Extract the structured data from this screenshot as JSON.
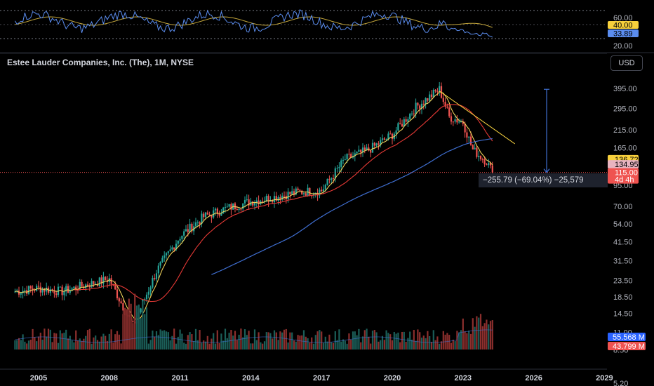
{
  "header": {
    "title": "Estee Lauder Companies, Inc. (The), 1M, NYSE",
    "currency": "USD"
  },
  "colors": {
    "up": "#26a69a",
    "down": "#ef5350",
    "ma_fast": "#f0d25a",
    "ma_mid": "#e53935",
    "ma_slow": "#3f6ed0",
    "rsi": "#5b8def",
    "rsi_ma": "#c6a83c",
    "trendline": "#f4d03f",
    "measure": "#3f6ed0"
  },
  "rsi_panel": {
    "axis_labels": [
      "60.00",
      "20.00"
    ],
    "tags": [
      {
        "label": "40.00",
        "color": "#f7d03c",
        "text_color": "#000000"
      },
      {
        "label": "33.89",
        "color": "#5b8def",
        "text_color": "#000000"
      }
    ]
  },
  "price_axis": {
    "labels": [
      "395.00",
      "295.00",
      "215.00",
      "165.00",
      "95.00",
      "70.00",
      "54.00",
      "41.50",
      "31.50",
      "23.50",
      "18.50",
      "14.50",
      "11.00",
      "8.50",
      "5.20"
    ]
  },
  "price_tags": [
    {
      "label": "136.72",
      "color": "#f7d03c",
      "text_color": "#000000"
    },
    {
      "label": "134.95",
      "color": "#e8b4c0",
      "text_color": "#000000"
    },
    {
      "label": "115.00",
      "sub": "4d 4h",
      "color": "#ef5350",
      "text_color": "#ffffff"
    }
  ],
  "volume_tags": [
    {
      "label": "55.568 M",
      "color": "#2962ff",
      "text_color": "#ffffff"
    },
    {
      "label": "43.799 M",
      "color": "#ef5350",
      "text_color": "#ffffff"
    }
  ],
  "measure": {
    "label": "−255.79 (−69.04%) −25,579"
  },
  "time_axis": {
    "labels": [
      "2005",
      "2008",
      "2011",
      "2014",
      "2017",
      "2020",
      "2023",
      "2026",
      "2029"
    ]
  },
  "chart_data": {
    "type": "candlestick",
    "title": "Estee Lauder Companies, Inc. (The), 1M, NYSE",
    "scale": "log",
    "price_axis": [
      "5.20",
      "8.50",
      "11.00",
      "14.50",
      "18.50",
      "23.50",
      "31.50",
      "41.50",
      "54.00",
      "70.00",
      "95.00",
      "165.00",
      "215.00",
      "295.00",
      "395.00"
    ],
    "x_axis": [
      "2005",
      "2008",
      "2011",
      "2014",
      "2017",
      "2020",
      "2023",
      "2026",
      "2029"
    ],
    "key_points": [
      {
        "date": "2004",
        "close": 20
      },
      {
        "date": "2005",
        "close": 21
      },
      {
        "date": "2006",
        "close": 20
      },
      {
        "date": "2007",
        "close": 22
      },
      {
        "date": "2008",
        "close": 24
      },
      {
        "date": "2009",
        "close": 12
      },
      {
        "date": "2010",
        "close": 27
      },
      {
        "date": "2011",
        "close": 45
      },
      {
        "date": "2012",
        "close": 60
      },
      {
        "date": "2013",
        "close": 68
      },
      {
        "date": "2014",
        "close": 75
      },
      {
        "date": "2015",
        "close": 80
      },
      {
        "date": "2016",
        "close": 86
      },
      {
        "date": "2017",
        "close": 88
      },
      {
        "date": "2018",
        "close": 140
      },
      {
        "date": "2019",
        "close": 160
      },
      {
        "date": "2020",
        "close": 200
      },
      {
        "date": "2021",
        "close": 300
      },
      {
        "date": "2022",
        "close": 390
      },
      {
        "date": "2022-06",
        "close": 260
      },
      {
        "date": "2023",
        "close": 240
      },
      {
        "date": "2023-06",
        "close": 160
      },
      {
        "date": "2024",
        "close": 135
      },
      {
        "date": "2024-04",
        "close": 115
      }
    ],
    "last_price": 115.0,
    "price_change": {
      "value": -255.79,
      "percent": -69.04,
      "ticks": -25579
    },
    "ma_values": [
      136.72,
      134.95
    ],
    "rsi": {
      "value": 33.89,
      "ma": 40.0,
      "levels": [
        70,
        30
      ]
    },
    "volume": {
      "last": "43.799 M",
      "ma": "55.568 M"
    }
  }
}
